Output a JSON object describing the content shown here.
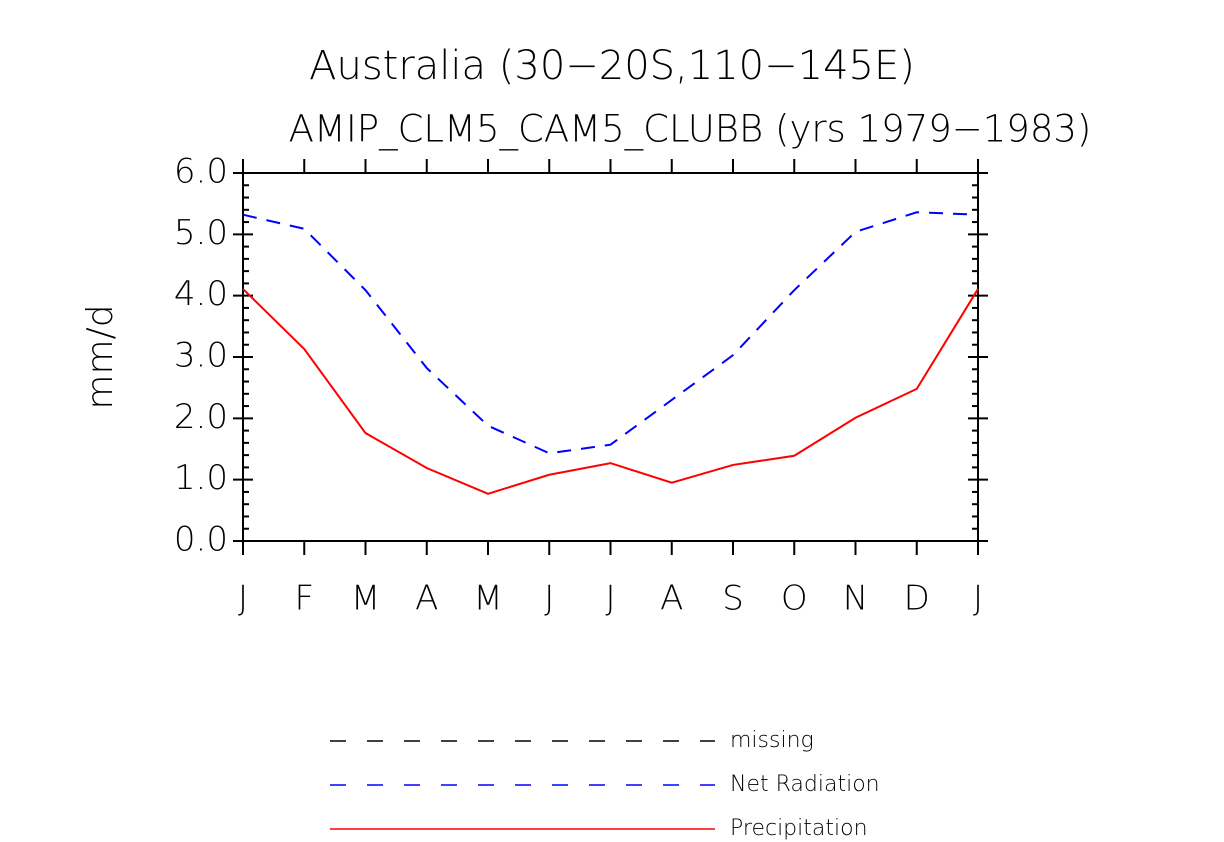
{
  "chart_data": {
    "type": "line",
    "title": "Australia (30−20S,110−145E)",
    "subtitle": "AMIP_CLM5_CAM5_CLUBB (yrs 1979−1983)",
    "y_label": "mm/d",
    "categories": [
      "J",
      "F",
      "M",
      "A",
      "M",
      "J",
      "J",
      "A",
      "S",
      "O",
      "N",
      "D",
      "J"
    ],
    "series": [
      {
        "name": "missing",
        "color": "#000000",
        "line_style": "dashed",
        "values": [
          null,
          null,
          null,
          null,
          null,
          null,
          null,
          null,
          null,
          null,
          null,
          null,
          null
        ]
      },
      {
        "name": "Net Radiation",
        "color": "#0000ff",
        "line_style": "dashed",
        "values": [
          5.32,
          5.09,
          4.09,
          2.82,
          1.88,
          1.43,
          1.57,
          2.3,
          3.03,
          4.09,
          5.04,
          5.36,
          5.32
        ]
      },
      {
        "name": "Precipitation",
        "color": "#ff0000",
        "line_style": "solid",
        "values": [
          4.11,
          3.13,
          1.76,
          1.19,
          0.77,
          1.08,
          1.27,
          0.95,
          1.24,
          1.39,
          2.01,
          2.48,
          4.11
        ]
      }
    ],
    "ylim": [
      0,
      6
    ],
    "yticks": [
      {
        "value": 0,
        "label": "0.0"
      },
      {
        "value": 1,
        "label": "1.0"
      },
      {
        "value": 2,
        "label": "2.0"
      },
      {
        "value": 3,
        "label": "3.0"
      },
      {
        "value": 4,
        "label": "4.0"
      },
      {
        "value": 5,
        "label": "5.0"
      },
      {
        "value": 6,
        "label": "6.0"
      }
    ]
  }
}
